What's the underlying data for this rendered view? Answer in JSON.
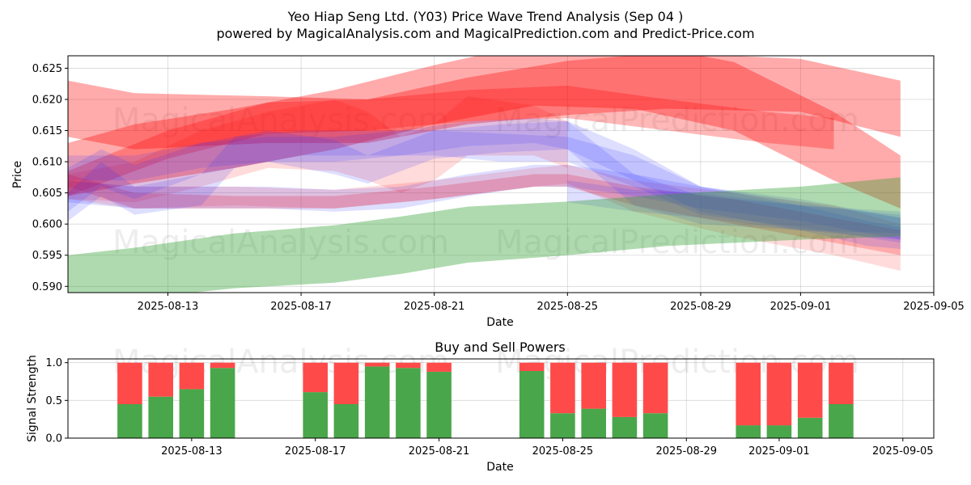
{
  "title_line1": "Yeo Hiap Seng Ltd. (Y03) Price Wave Trend Analysis (Sep 04 )",
  "title_line2": "powered by MagicalAnalysis.com and MagicalPrediction.com and Predict-Price.com",
  "watermarks": [
    "MagicalAnalysis.com",
    "MagicalPrediction.com"
  ],
  "colors": {
    "buy": "#4aa64a",
    "sell": "#ff4a4a",
    "red_band": "#ff0000",
    "blue_band": "#3333ff",
    "green_band": "#2e9e2e",
    "grid": "#b0b0b0"
  },
  "chart_data": [
    {
      "type": "area",
      "description": "Price wave trend bands (translucent)",
      "xlabel": "Date",
      "ylabel": "Price",
      "xlim": [
        "2025-08-10",
        "2025-09-05"
      ],
      "ylim": [
        0.589,
        0.627
      ],
      "x_ticks": [
        "2025-08-13",
        "2025-08-17",
        "2025-08-21",
        "2025-08-25",
        "2025-08-29",
        "2025-09-01",
        "2025-09-05"
      ],
      "y_ticks": [
        "0.590",
        "0.595",
        "0.600",
        "0.605",
        "0.610",
        "0.615",
        "0.620",
        "0.625"
      ],
      "grid": true,
      "series": [
        {
          "color": "red",
          "opacity": 0.33,
          "x": [
            "2025-08-10",
            "2025-08-12",
            "2025-08-16",
            "2025-08-19",
            "2025-08-22",
            "2025-08-25",
            "2025-08-28",
            "2025-09-01",
            "2025-09-04"
          ],
          "upper": [
            0.623,
            0.621,
            0.6205,
            0.62,
            0.6235,
            0.6262,
            0.6275,
            0.6265,
            0.623
          ],
          "lower": [
            0.614,
            0.612,
            0.613,
            0.613,
            0.616,
            0.6175,
            0.6185,
            0.618,
            0.614
          ]
        },
        {
          "color": "red",
          "opacity": 0.33,
          "x": [
            "2025-08-10",
            "2025-08-12",
            "2025-08-15",
            "2025-08-18",
            "2025-08-21",
            "2025-08-24",
            "2025-08-27",
            "2025-08-30",
            "2025-09-02",
            "2025-09-04"
          ],
          "upper": [
            0.613,
            0.616,
            0.6185,
            0.6215,
            0.6255,
            0.629,
            0.629,
            0.626,
            0.618,
            0.611
          ],
          "lower": [
            0.6045,
            0.6065,
            0.609,
            0.612,
            0.616,
            0.619,
            0.6185,
            0.615,
            0.607,
            0.6025
          ]
        },
        {
          "color": "red",
          "opacity": 0.28,
          "x": [
            "2025-08-10",
            "2025-08-13",
            "2025-08-16",
            "2025-08-19",
            "2025-08-22",
            "2025-08-25",
            "2025-08-28",
            "2025-08-31",
            "2025-09-02"
          ],
          "upper": [
            0.6085,
            0.615,
            0.6195,
            0.62,
            0.6215,
            0.6222,
            0.62,
            0.618,
            0.617
          ],
          "lower": [
            0.6045,
            0.6105,
            0.6145,
            0.615,
            0.6165,
            0.617,
            0.615,
            0.613,
            0.612
          ]
        },
        {
          "color": "red",
          "opacity": 0.14,
          "x": [
            "2025-08-10",
            "2025-08-12",
            "2025-08-14",
            "2025-08-16",
            "2025-08-18",
            "2025-08-19",
            "2025-08-20",
            "2025-08-21",
            "2025-08-22",
            "2025-08-24",
            "2025-08-25"
          ],
          "upper": [
            0.608,
            0.61,
            0.615,
            0.618,
            0.62,
            0.618,
            0.614,
            0.616,
            0.6205,
            0.619,
            0.6165
          ],
          "lower": [
            0.604,
            0.6035,
            0.606,
            0.609,
            0.6085,
            0.607,
            0.605,
            0.607,
            0.611,
            0.611,
            0.609
          ]
        },
        {
          "color": "red",
          "opacity": 0.14,
          "x": [
            "2025-08-10",
            "2025-08-12",
            "2025-08-15",
            "2025-08-18",
            "2025-08-21",
            "2025-08-24",
            "2025-08-25",
            "2025-08-27",
            "2025-08-30",
            "2025-09-02",
            "2025-09-04"
          ],
          "upper": [
            0.607,
            0.606,
            0.606,
            0.6055,
            0.607,
            0.609,
            0.6095,
            0.607,
            0.605,
            0.603,
            0.6
          ],
          "lower": [
            0.604,
            0.6025,
            0.603,
            0.6025,
            0.604,
            0.606,
            0.6065,
            0.602,
            0.598,
            0.595,
            0.5925
          ]
        },
        {
          "color": "red",
          "opacity": 0.22,
          "x": [
            "2025-08-10",
            "2025-08-12",
            "2025-08-15",
            "2025-08-18",
            "2025-08-21",
            "2025-08-24",
            "2025-08-25",
            "2025-08-27",
            "2025-08-30",
            "2025-09-02",
            "2025-09-04"
          ],
          "upper": [
            0.608,
            0.605,
            0.6045,
            0.6045,
            0.606,
            0.608,
            0.608,
            0.606,
            0.604,
            0.601,
            0.599
          ],
          "lower": [
            0.606,
            0.6025,
            0.6025,
            0.6025,
            0.604,
            0.606,
            0.606,
            0.603,
            0.6,
            0.597,
            0.595
          ]
        },
        {
          "color": "blue",
          "opacity": 0.16,
          "x": [
            "2025-08-10",
            "2025-08-11",
            "2025-08-12",
            "2025-08-14",
            "2025-08-16",
            "2025-08-18",
            "2025-08-19",
            "2025-08-21",
            "2025-08-23",
            "2025-08-25",
            "2025-08-27",
            "2025-08-29",
            "2025-09-01",
            "2025-09-04"
          ],
          "upper": [
            0.609,
            0.612,
            0.6095,
            0.613,
            0.615,
            0.6135,
            0.611,
            0.615,
            0.616,
            0.6165,
            0.608,
            0.6045,
            0.603,
            0.6015
          ],
          "lower": [
            0.602,
            0.606,
            0.604,
            0.608,
            0.61,
            0.608,
            0.6065,
            0.6105,
            0.6115,
            0.612,
            0.603,
            0.6,
            0.599,
            0.5975
          ]
        },
        {
          "color": "blue",
          "opacity": 0.16,
          "x": [
            "2025-08-10",
            "2025-08-11",
            "2025-08-12",
            "2025-08-14",
            "2025-08-15",
            "2025-08-17",
            "2025-08-19",
            "2025-08-21",
            "2025-08-23",
            "2025-08-25",
            "2025-08-27",
            "2025-08-29",
            "2025-09-01",
            "2025-09-04"
          ],
          "upper": [
            0.605,
            0.61,
            0.606,
            0.608,
            0.614,
            0.615,
            0.615,
            0.615,
            0.6145,
            0.614,
            0.611,
            0.606,
            0.6035,
            0.601
          ],
          "lower": [
            0.6005,
            0.6045,
            0.6015,
            0.603,
            0.609,
            0.611,
            0.611,
            0.611,
            0.61,
            0.61,
            0.606,
            0.6015,
            0.5995,
            0.597
          ]
        },
        {
          "color": "blue",
          "opacity": 0.16,
          "x": [
            "2025-08-10",
            "2025-08-12",
            "2025-08-14",
            "2025-08-16",
            "2025-08-18",
            "2025-08-20",
            "2025-08-22",
            "2025-08-24",
            "2025-08-25",
            "2025-08-27",
            "2025-08-29",
            "2025-09-01",
            "2025-09-03",
            "2025-09-04"
          ],
          "upper": [
            0.611,
            0.611,
            0.613,
            0.614,
            0.614,
            0.615,
            0.6165,
            0.617,
            0.6165,
            0.612,
            0.606,
            0.603,
            0.6005,
            0.5995
          ],
          "lower": [
            0.607,
            0.607,
            0.609,
            0.61,
            0.61,
            0.611,
            0.6125,
            0.613,
            0.612,
            0.607,
            0.602,
            0.599,
            0.5965,
            0.596
          ]
        },
        {
          "color": "blue",
          "opacity": 0.16,
          "x": [
            "2025-08-10",
            "2025-08-12",
            "2025-08-14",
            "2025-08-16",
            "2025-08-18",
            "2025-08-20",
            "2025-08-22",
            "2025-08-24",
            "2025-08-25",
            "2025-08-27",
            "2025-08-29",
            "2025-09-01",
            "2025-09-04"
          ],
          "upper": [
            0.607,
            0.606,
            0.606,
            0.606,
            0.6055,
            0.606,
            0.608,
            0.6095,
            0.6095,
            0.608,
            0.606,
            0.604,
            0.601
          ],
          "lower": [
            0.6035,
            0.6025,
            0.6025,
            0.6025,
            0.602,
            0.6025,
            0.6045,
            0.606,
            0.606,
            0.6045,
            0.6025,
            0.6005,
            0.5975
          ]
        },
        {
          "color": "blue",
          "opacity": 0.16,
          "x": [
            "2025-08-25",
            "2025-08-27",
            "2025-08-29",
            "2025-09-01",
            "2025-09-04"
          ],
          "upper": [
            0.607,
            0.6055,
            0.605,
            0.603,
            0.602
          ],
          "lower": [
            0.6035,
            0.602,
            0.601,
            0.599,
            0.5985
          ]
        },
        {
          "color": "green",
          "opacity": 0.38,
          "x": [
            "2025-08-10",
            "2025-08-12",
            "2025-08-15",
            "2025-08-18",
            "2025-08-20",
            "2025-08-22",
            "2025-08-25",
            "2025-08-28",
            "2025-09-01",
            "2025-09-04"
          ],
          "upper": [
            0.595,
            0.5962,
            0.5985,
            0.5998,
            0.6012,
            0.6028,
            0.6036,
            0.6048,
            0.606,
            0.6075
          ],
          "lower": [
            0.587,
            0.588,
            0.5897,
            0.5906,
            0.592,
            0.5938,
            0.595,
            0.5965,
            0.5975,
            0.598
          ]
        }
      ]
    },
    {
      "type": "bar",
      "title": "Buy and Sell Powers",
      "xlabel": "Date",
      "ylabel": "Signal Strength",
      "ylim": [
        0,
        1.05
      ],
      "x_ticks": [
        "2025-08-13",
        "2025-08-17",
        "2025-08-21",
        "2025-08-25",
        "2025-08-29",
        "2025-09-01",
        "2025-09-05"
      ],
      "y_ticks": [
        "0.0",
        "0.5",
        "1.0"
      ],
      "grid": true,
      "categories": [
        "2025-08-11",
        "2025-08-12",
        "2025-08-13",
        "2025-08-14",
        "2025-08-17",
        "2025-08-18",
        "2025-08-19",
        "2025-08-20",
        "2025-08-21",
        "2025-08-24",
        "2025-08-25",
        "2025-08-26",
        "2025-08-27",
        "2025-08-28",
        "2025-08-31",
        "2025-09-01",
        "2025-09-02",
        "2025-09-03"
      ],
      "series": [
        {
          "name": "Buy",
          "values": [
            0.45,
            0.55,
            0.65,
            0.93,
            0.61,
            0.45,
            0.95,
            0.93,
            0.88,
            0.89,
            0.33,
            0.39,
            0.28,
            0.33,
            0.17,
            0.17,
            0.27,
            0.45
          ]
        },
        {
          "name": "Sell",
          "values": [
            0.55,
            0.45,
            0.35,
            0.07,
            0.39,
            0.55,
            0.05,
            0.07,
            0.12,
            0.11,
            0.67,
            0.61,
            0.72,
            0.67,
            0.83,
            0.83,
            0.73,
            0.55
          ]
        }
      ]
    }
  ]
}
